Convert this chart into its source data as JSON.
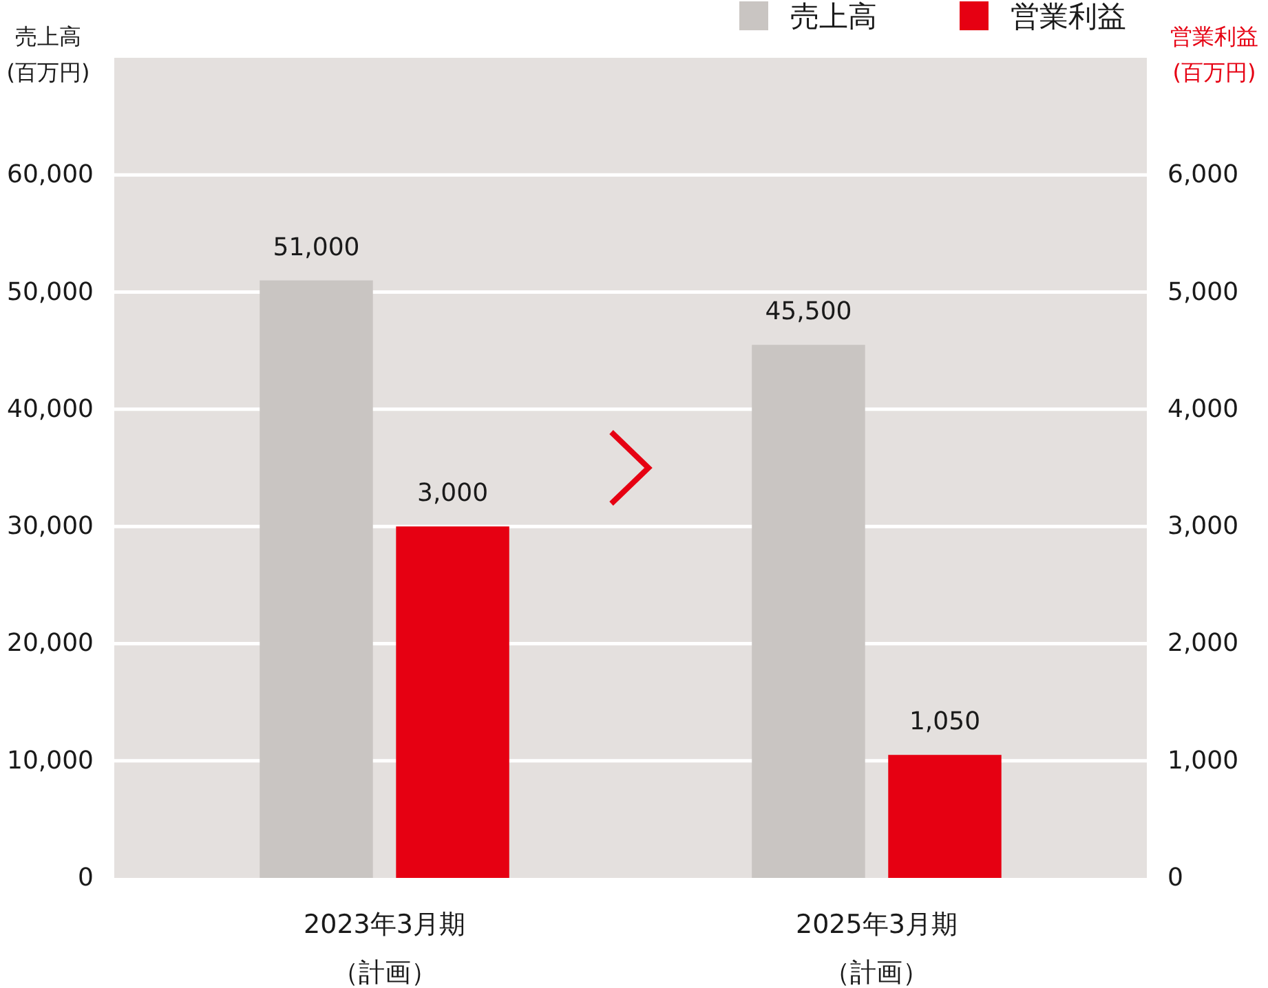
{
  "chart_data": {
    "type": "bar",
    "categories": [
      "2023年3月期（計画）",
      "2025年3月期（計画）"
    ],
    "ylabel": "売上高\n(百万円)",
    "y2label": "営業利益\n(百万円)",
    "series": [
      {
        "name": "売上高",
        "color": "#c9c5c2",
        "values": [
          51000,
          45500
        ],
        "value_labels": [
          "51,000",
          "45,500"
        ]
      },
      {
        "name": "営業利益",
        "color": "#e60012",
        "axis": "y2",
        "values": [
          3000,
          1050
        ],
        "value_labels": [
          "3,000",
          "1,050"
        ]
      }
    ],
    "ylim": [
      0,
      70000
    ],
    "yticks": [
      0,
      {
        "value": 10000,
        "label": "10,000"
      },
      {
        "value": 20000,
        "label": "20,000"
      },
      {
        "value": 30000,
        "label": "30,000"
      },
      {
        "value": 40000,
        "label": "40,000"
      },
      {
        "value": 50000,
        "label": "50,000"
      },
      {
        "value": 60000,
        "label": "60,000"
      }
    ],
    "y2lim": [
      0,
      7000
    ],
    "y2ticks": [
      0,
      {
        "value": 1000,
        "label": "1,000"
      },
      {
        "value": 2000,
        "label": "2,000"
      },
      {
        "value": 3000,
        "label": "3,000"
      },
      {
        "value": 4000,
        "label": "4,000"
      },
      {
        "value": 5000,
        "label": "5,000"
      },
      {
        "value": 6000,
        "label": "6,000"
      }
    ],
    "grid": "y",
    "legend": "top right"
  }
}
